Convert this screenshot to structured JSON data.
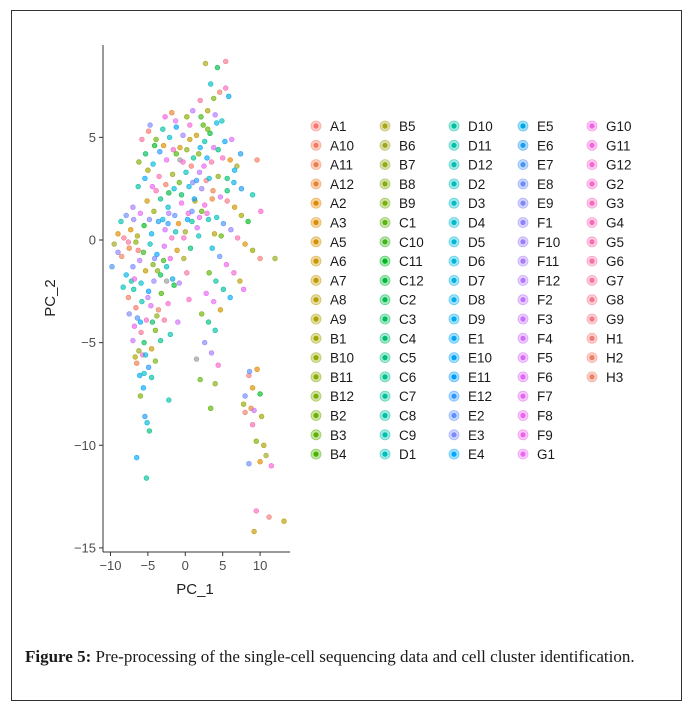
{
  "chart_data": {
    "type": "scatter",
    "title": "",
    "xlabel": "PC_1",
    "ylabel": "PC_2",
    "xlim": [
      -11,
      14
    ],
    "ylim": [
      -15.2,
      9.5
    ],
    "xticks": [
      -10,
      -5,
      0,
      5,
      10
    ],
    "yticks": [
      5,
      0,
      -5,
      -10,
      -15
    ],
    "xtick_labels": [
      "−10",
      "−5",
      "0",
      "5",
      "10"
    ],
    "ytick_labels": [
      "5",
      "0",
      "−5",
      "−10",
      "−15"
    ],
    "grid": false,
    "legend_position": "right",
    "legend_columns": [
      [
        "A1",
        "A10",
        "A11",
        "A12",
        "A2",
        "A3",
        "A5",
        "A6",
        "A7",
        "A8",
        "A9",
        "B1",
        "B10",
        "B11",
        "B12",
        "B2",
        "B3",
        "B4"
      ],
      [
        "B5",
        "B6",
        "B7",
        "B8",
        "B9",
        "C1",
        "C10",
        "C11",
        "C12",
        "C2",
        "C3",
        "C4",
        "C5",
        "C6",
        "C7",
        "C8",
        "C9",
        "D1"
      ],
      [
        "D10",
        "D11",
        "D12",
        "D2",
        "D3",
        "D4",
        "D5",
        "D6",
        "D7",
        "D8",
        "D9",
        "E1",
        "E10",
        "E11",
        "E12",
        "E2",
        "E3",
        "E4"
      ],
      [
        "E5",
        "E6",
        "E7",
        "E8",
        "E9",
        "F1",
        "F10",
        "F11",
        "F12",
        "F2",
        "F3",
        "F4",
        "F5",
        "F6",
        "F7",
        "F8",
        "F9",
        "G1"
      ],
      [
        "G10",
        "G11",
        "G12",
        "G2",
        "G3",
        "G4",
        "G5",
        "G6",
        "G7",
        "G8",
        "G9",
        "H1",
        "H2",
        "H3"
      ]
    ],
    "points_note": "",
    "points": [
      [
        -6.5,
        -10.6,
        "E4"
      ],
      [
        -5.2,
        -11.6,
        "C7"
      ],
      [
        11.2,
        -13.5,
        "H1"
      ],
      [
        13.2,
        -13.7,
        "A8"
      ],
      [
        9.2,
        -14.2,
        "A7"
      ],
      [
        9.5,
        -13.2,
        "G3"
      ],
      [
        8.5,
        -10.9,
        "E8"
      ],
      [
        9.5,
        -9.8,
        "B12"
      ],
      [
        10.5,
        -10.0,
        "A9"
      ],
      [
        10.8,
        -10.5,
        "B6"
      ],
      [
        11.5,
        -11.0,
        "G11"
      ],
      [
        10.0,
        -10.8,
        "A3"
      ],
      [
        9.0,
        -9.0,
        "G5"
      ],
      [
        8.8,
        -8.2,
        "A12"
      ],
      [
        10.2,
        -8.6,
        "B1"
      ],
      [
        8.0,
        -8.4,
        "H2"
      ],
      [
        7.8,
        -8.0,
        "B10"
      ],
      [
        9.0,
        -7.2,
        "A5"
      ],
      [
        10.0,
        -7.5,
        "C11"
      ],
      [
        8.5,
        -6.6,
        "G9"
      ],
      [
        9.6,
        -6.3,
        "A2"
      ],
      [
        8.6,
        -6.4,
        "E2"
      ],
      [
        3.4,
        -8.2,
        "B3"
      ],
      [
        2.0,
        -6.8,
        "C1"
      ],
      [
        -2.2,
        -7.8,
        "C9"
      ],
      [
        -5.1,
        -8.9,
        "D6"
      ],
      [
        -5.4,
        -8.6,
        "E6"
      ],
      [
        -4.8,
        -9.3,
        "C5"
      ],
      [
        -6.0,
        -7.6,
        "B12"
      ],
      [
        -6.1,
        -6.6,
        "E1"
      ],
      [
        -5.5,
        -6.5,
        "D2"
      ],
      [
        -4.9,
        -6.2,
        "E12"
      ],
      [
        -6.5,
        -6.0,
        "A11"
      ],
      [
        -5.7,
        -5.6,
        "G4"
      ],
      [
        -6.2,
        -5.4,
        "B7"
      ],
      [
        -7.0,
        -4.9,
        "F3"
      ],
      [
        -5.5,
        -5.0,
        "C3"
      ],
      [
        -4.5,
        -5.3,
        "A6"
      ],
      [
        -6.8,
        -4.2,
        "F8"
      ],
      [
        -6.0,
        -4.0,
        "D9"
      ],
      [
        -5.2,
        -3.9,
        "G2"
      ],
      [
        -4.0,
        -4.4,
        "B2"
      ],
      [
        -3.3,
        -4.9,
        "C6"
      ],
      [
        -7.5,
        -3.6,
        "E9"
      ],
      [
        -6.6,
        -3.3,
        "A1"
      ],
      [
        -5.8,
        -3.0,
        "D11"
      ],
      [
        -4.6,
        -3.2,
        "F6"
      ],
      [
        -3.8,
        -3.7,
        "B8"
      ],
      [
        -2.8,
        -3.9,
        "G6"
      ],
      [
        -7.6,
        -2.8,
        "A10"
      ],
      [
        -6.9,
        -2.4,
        "C8"
      ],
      [
        -5.9,
        -2.1,
        "D4"
      ],
      [
        -4.9,
        -2.5,
        "E11"
      ],
      [
        -4.2,
        -2.0,
        "F10"
      ],
      [
        -3.2,
        -2.6,
        "B4"
      ],
      [
        -2.3,
        -3.1,
        "G12"
      ],
      [
        -1.5,
        -2.2,
        "C12"
      ],
      [
        -7.9,
        -1.7,
        "D7"
      ],
      [
        -7.0,
        -1.3,
        "E3"
      ],
      [
        -6.1,
        -1.0,
        "F2"
      ],
      [
        -5.3,
        -1.5,
        "A7"
      ],
      [
        -4.3,
        -1.2,
        "B9"
      ],
      [
        -3.3,
        -1.7,
        "C2"
      ],
      [
        -2.5,
        -1.3,
        "D3"
      ],
      [
        -1.7,
        -1.9,
        "E5"
      ],
      [
        -0.8,
        -2.1,
        "F12"
      ],
      [
        0.2,
        -1.6,
        "G7"
      ],
      [
        -8.5,
        -0.8,
        "H3"
      ],
      [
        -7.5,
        -0.4,
        "A12"
      ],
      [
        -6.6,
        -0.1,
        "B11"
      ],
      [
        -5.6,
        -0.6,
        "C10"
      ],
      [
        -4.7,
        -0.2,
        "D1"
      ],
      [
        -3.8,
        -0.7,
        "E10"
      ],
      [
        -2.8,
        -0.3,
        "F5"
      ],
      [
        -2.0,
        -0.9,
        "G10"
      ],
      [
        -1.1,
        -0.5,
        "A5"
      ],
      [
        -0.2,
        -0.9,
        "B5"
      ],
      [
        0.7,
        -0.4,
        "C4"
      ],
      [
        -9.8,
        -1.3,
        "E7"
      ],
      [
        -9.0,
        -0.6,
        "F1"
      ],
      [
        -8.2,
        0.1,
        "G8"
      ],
      [
        -7.3,
        0.5,
        "A3"
      ],
      [
        -6.4,
        0.2,
        "B1"
      ],
      [
        -5.5,
        0.7,
        "C11"
      ],
      [
        -4.5,
        0.3,
        "D8"
      ],
      [
        -3.6,
        0.9,
        "E6"
      ],
      [
        -2.7,
        0.5,
        "F4"
      ],
      [
        -1.8,
        0.1,
        "G3"
      ],
      [
        -0.9,
        0.8,
        "A2"
      ],
      [
        0.0,
        0.4,
        "B6"
      ],
      [
        0.9,
        0.9,
        "C7"
      ],
      [
        1.8,
        0.2,
        "D12"
      ],
      [
        -7.9,
        1.2,
        "E8"
      ],
      [
        -7.0,
        1.6,
        "F11"
      ],
      [
        -6.0,
        1.3,
        "G1"
      ],
      [
        -5.1,
        1.9,
        "A6"
      ],
      [
        -4.2,
        1.4,
        "B10"
      ],
      [
        -3.3,
        2.0,
        "C5"
      ],
      [
        -2.3,
        1.6,
        "D5"
      ],
      [
        -1.4,
        1.2,
        "E2"
      ],
      [
        -0.5,
        1.8,
        "F9"
      ],
      [
        0.4,
        1.3,
        "G11"
      ],
      [
        1.3,
        1.9,
        "A8"
      ],
      [
        2.2,
        1.4,
        "B3"
      ],
      [
        3.1,
        1.0,
        "C9"
      ],
      [
        -6.3,
        2.6,
        "D10"
      ],
      [
        -5.4,
        3.0,
        "E4"
      ],
      [
        -4.4,
        2.6,
        "F7"
      ],
      [
        -3.5,
        3.1,
        "G5"
      ],
      [
        -2.6,
        2.7,
        "A10"
      ],
      [
        -1.7,
        3.2,
        "B7"
      ],
      [
        -0.8,
        2.8,
        "C1"
      ],
      [
        0.1,
        3.3,
        "D2"
      ],
      [
        1.0,
        2.8,
        "E9"
      ],
      [
        1.9,
        3.3,
        "F3"
      ],
      [
        2.8,
        2.9,
        "G9"
      ],
      [
        3.7,
        2.4,
        "A11"
      ],
      [
        -6.2,
        3.8,
        "B12"
      ],
      [
        -5.3,
        4.2,
        "C3"
      ],
      [
        -4.3,
        3.7,
        "D6"
      ],
      [
        -3.4,
        4.3,
        "E12"
      ],
      [
        -2.5,
        3.9,
        "F8"
      ],
      [
        -1.6,
        4.4,
        "G2"
      ],
      [
        -0.7,
        3.9,
        "A4"
      ],
      [
        0.2,
        4.4,
        "B8"
      ],
      [
        1.1,
        4.0,
        "C6"
      ],
      [
        2.0,
        4.5,
        "D9"
      ],
      [
        2.9,
        4.0,
        "E1"
      ],
      [
        3.8,
        4.5,
        "F6"
      ],
      [
        -5.8,
        4.9,
        "G6"
      ],
      [
        -4.9,
        5.3,
        "A1"
      ],
      [
        -3.9,
        4.9,
        "B2"
      ],
      [
        -3.0,
        5.4,
        "C8"
      ],
      [
        -2.1,
        5.0,
        "D4"
      ],
      [
        -1.2,
        5.5,
        "E11"
      ],
      [
        -0.3,
        5.1,
        "F10"
      ],
      [
        0.6,
        5.6,
        "G12"
      ],
      [
        1.5,
        5.1,
        "A7"
      ],
      [
        2.4,
        5.6,
        "B4"
      ],
      [
        3.3,
        5.2,
        "C12"
      ],
      [
        4.2,
        5.7,
        "D7"
      ],
      [
        -4.7,
        5.6,
        "E3"
      ],
      [
        1.0,
        6.3,
        "F2"
      ],
      [
        2.0,
        6.8,
        "G7"
      ],
      [
        3.0,
        6.3,
        "A9"
      ],
      [
        3.8,
        6.9,
        "B9"
      ],
      [
        4.6,
        7.2,
        "H2"
      ],
      [
        5.4,
        7.4,
        "G4"
      ],
      [
        2.7,
        8.6,
        "B5"
      ],
      [
        4.3,
        8.4,
        "C2"
      ],
      [
        5.4,
        8.7,
        "G8"
      ],
      [
        3.4,
        7.6,
        "D3"
      ],
      [
        5.8,
        7.0,
        "E5"
      ],
      [
        4.0,
        6.1,
        "F12"
      ],
      [
        -2.7,
        6.0,
        "G10"
      ],
      [
        -1.8,
        6.2,
        "A12"
      ],
      [
        0.2,
        6.0,
        "B11"
      ],
      [
        2.1,
        6.0,
        "C10"
      ],
      [
        4.9,
        5.8,
        "D1"
      ],
      [
        5.3,
        4.8,
        "E10"
      ],
      [
        6.2,
        4.9,
        "F5"
      ],
      [
        5.0,
        4.0,
        "G3"
      ],
      [
        6.0,
        3.9,
        "A2"
      ],
      [
        6.9,
        3.6,
        "B6"
      ],
      [
        5.6,
        3.0,
        "C4"
      ],
      [
        6.5,
        2.8,
        "D8"
      ],
      [
        7.5,
        2.5,
        "E6"
      ],
      [
        4.7,
        2.1,
        "F4"
      ],
      [
        5.6,
        1.9,
        "G9"
      ],
      [
        6.6,
        1.6,
        "A5"
      ],
      [
        7.5,
        1.2,
        "B1"
      ],
      [
        8.4,
        0.9,
        "C11"
      ],
      [
        4.2,
        1.1,
        "D12"
      ],
      [
        5.1,
        0.8,
        "E7"
      ],
      [
        6.1,
        0.5,
        "F1"
      ],
      [
        7.0,
        0.1,
        "G5"
      ],
      [
        8.0,
        -0.2,
        "A3"
      ],
      [
        9.0,
        -0.5,
        "B10"
      ],
      [
        10.0,
        -0.9,
        "H1"
      ],
      [
        12.0,
        -0.9,
        "B7"
      ],
      [
        9.6,
        3.9,
        "A10"
      ],
      [
        9.0,
        2.2,
        "C9"
      ],
      [
        10.1,
        1.4,
        "G12"
      ],
      [
        3.6,
        -0.4,
        "D5"
      ],
      [
        4.6,
        -0.8,
        "E2"
      ],
      [
        5.5,
        -1.2,
        "F9"
      ],
      [
        6.5,
        -1.6,
        "G11"
      ],
      [
        7.3,
        -2.0,
        "A8"
      ],
      [
        3.2,
        -1.6,
        "B3"
      ],
      [
        4.1,
        -2.0,
        "C7"
      ],
      [
        5.1,
        -2.4,
        "D10"
      ],
      [
        6.0,
        -2.8,
        "E4"
      ],
      [
        2.8,
        -2.6,
        "F7"
      ],
      [
        3.8,
        -3.0,
        "G1"
      ],
      [
        4.7,
        -3.4,
        "A6"
      ],
      [
        2.2,
        -3.6,
        "B2"
      ],
      [
        3.1,
        -4.0,
        "C5"
      ],
      [
        4.0,
        -4.4,
        "D11"
      ],
      [
        2.6,
        -5.0,
        "E9"
      ],
      [
        3.5,
        -5.5,
        "F11"
      ],
      [
        4.4,
        -6.1,
        "G2"
      ],
      [
        1.5,
        -5.8,
        "A4"
      ],
      [
        4.0,
        -7.0,
        "B8"
      ],
      [
        8.0,
        -7.6,
        "E8"
      ],
      [
        9.2,
        -8.3,
        "F3"
      ],
      [
        -0.5,
        2.2,
        "C3"
      ],
      [
        0.5,
        2.6,
        "D6"
      ],
      [
        1.5,
        2.9,
        "E12"
      ],
      [
        2.5,
        3.6,
        "F8"
      ],
      [
        3.5,
        3.8,
        "G6"
      ],
      [
        0.8,
        3.6,
        "A1"
      ],
      [
        1.8,
        4.2,
        "B12"
      ],
      [
        2.6,
        4.8,
        "C8"
      ],
      [
        3.2,
        3.0,
        "D4"
      ],
      [
        1.2,
        2.0,
        "E11"
      ],
      [
        2.2,
        2.5,
        "F10"
      ],
      [
        -0.3,
        3.8,
        "G12"
      ],
      [
        0.6,
        4.9,
        "A7"
      ],
      [
        -1.2,
        4.2,
        "B4"
      ],
      [
        -2.2,
        2.3,
        "C12"
      ],
      [
        -3.0,
        1.0,
        "D7"
      ],
      [
        -4.1,
        -0.9,
        "E3"
      ],
      [
        -5.0,
        -2.8,
        "F2"
      ],
      [
        -5.9,
        -4.5,
        "G7"
      ],
      [
        -6.7,
        -5.7,
        "A9"
      ],
      [
        -4.0,
        -5.9,
        "B9"
      ],
      [
        -3.6,
        -3.4,
        "H3"
      ],
      [
        -2.9,
        -1.0,
        "C10"
      ],
      [
        -1.3,
        0.4,
        "D1"
      ],
      [
        0.3,
        1.0,
        "E10"
      ],
      [
        1.6,
        0.6,
        "F5"
      ],
      [
        2.6,
        1.7,
        "G10"
      ],
      [
        3.6,
        2.0,
        "A12"
      ],
      [
        4.4,
        3.1,
        "B11"
      ],
      [
        5.6,
        2.4,
        "C4"
      ],
      [
        6.6,
        3.4,
        "D8"
      ],
      [
        7.4,
        4.2,
        "E6"
      ],
      [
        -1.0,
        -4.0,
        "F4"
      ],
      [
        0.5,
        -2.9,
        "G3"
      ],
      [
        -9.0,
        0.3,
        "A2"
      ],
      [
        -9.5,
        -0.2,
        "B6"
      ],
      [
        -7.2,
        -2.0,
        "C7"
      ],
      [
        -8.3,
        -2.3,
        "D12"
      ],
      [
        -6.4,
        -3.8,
        "E7"
      ],
      [
        -6.9,
        1.0,
        "F1"
      ],
      [
        -3.9,
        2.4,
        "G5"
      ],
      [
        -2.9,
        4.6,
        "A3"
      ],
      [
        -5.0,
        3.4,
        "B1"
      ],
      [
        -4.1,
        4.6,
        "C11"
      ],
      [
        -1.5,
        2.5,
        "D5"
      ],
      [
        0.9,
        1.4,
        "E2"
      ],
      [
        1.9,
        1.1,
        "F9"
      ],
      [
        2.9,
        1.3,
        "G11"
      ],
      [
        3.9,
        0.3,
        "A8"
      ],
      [
        4.8,
        0.2,
        "B3"
      ],
      [
        -2.0,
        -4.6,
        "C9"
      ],
      [
        -4.5,
        -6.7,
        "D10"
      ],
      [
        -5.6,
        -7.2,
        "E4"
      ],
      [
        7.8,
        -2.4,
        "F7"
      ],
      [
        -1.3,
        5.8,
        "G1"
      ],
      [
        -0.7,
        4.5,
        "A6"
      ],
      [
        3.0,
        5.4,
        "B2"
      ],
      [
        4.4,
        4.4,
        "C5"
      ],
      [
        -8.6,
        0.9,
        "D11"
      ],
      [
        -4.8,
        1.0,
        "E9"
      ],
      [
        -2.2,
        1.3,
        "F11"
      ],
      [
        -0.2,
        0.1,
        "G2"
      ],
      [
        -2.5,
        -2.0,
        "A4"
      ],
      [
        -3.7,
        -1.5,
        "B8"
      ],
      [
        -4.4,
        -4.0,
        "C3"
      ],
      [
        -5.3,
        -5.6,
        "D6"
      ],
      [
        -2.3,
        0.8,
        "E12"
      ],
      [
        -6.8,
        -1.9,
        "F8"
      ],
      [
        -7.6,
        -0.1,
        "G6"
      ],
      [
        -6.3,
        -0.5,
        "A1"
      ]
    ],
    "cluster_colors": {
      "A1": "#F8766D",
      "A10": "#F47A5C",
      "A11": "#EF7E4B",
      "A12": "#EA8331",
      "A2": "#E38900",
      "A3": "#DC8D00",
      "A5": "#D49200",
      "A6": "#CB9600",
      "A7": "#C29A00",
      "A8": "#B89E00",
      "A9": "#ADA200",
      "B1": "#A2A500",
      "B10": "#96A900",
      "B11": "#89AC00",
      "B12": "#7CAE00",
      "B2": "#6DB100",
      "B3": "#5CB300",
      "B4": "#47B500",
      "B5": "#A9A418",
      "B6": "#9FA71E",
      "B7": "#93AA1A",
      "B8": "#86AD12",
      "B9": "#78AF0C",
      "C1": "#5DB30E",
      "C10": "#3EB51E",
      "C11": "#00B81F",
      "C12": "#00BA38",
      "C2": "#00BB4E",
      "C3": "#00BD5F",
      "C4": "#00BE6F",
      "C5": "#00BF7D",
      "C6": "#00C08B",
      "C7": "#00C098",
      "C8": "#00C1A3",
      "C9": "#00C1AE",
      "D1": "#00BFB8",
      "D10": "#00BFA0",
      "D11": "#00C0AA",
      "D12": "#00C0B4",
      "D2": "#00BFBE",
      "D3": "#00BDC6",
      "D4": "#00BBCE",
      "D5": "#00B9D6",
      "D6": "#00B6DD",
      "D7": "#00B3E4",
      "D8": "#00AFEA",
      "D9": "#00ABF0",
      "E1": "#00A6F5",
      "E10": "#00A2F9",
      "E11": "#009DFC",
      "E12": "#2B97FF",
      "E2": "#5D90FF",
      "E3": "#7B89FF",
      "E4": "#00A9FF",
      "E5": "#00A5E8",
      "E6": "#1E9BEF",
      "E7": "#4A94F3",
      "E8": "#6C8DF6",
      "E9": "#8087F7",
      "F1": "#8F83F9",
      "F10": "#9D7FFA",
      "F11": "#A97BFB",
      "F12": "#B478FC",
      "F2": "#BE74FC",
      "F3": "#C771FC",
      "F4": "#D06DFB",
      "F5": "#D86AF9",
      "F6": "#DF67F6",
      "F7": "#E565F2",
      "F8": "#EA64ED",
      "F9": "#EE63E7",
      "G1": "#E76BF3",
      "G10": "#F163E0",
      "G11": "#F464D9",
      "G12": "#F665D1",
      "G2": "#F767C9",
      "G3": "#F869C0",
      "G4": "#F86BB7",
      "G5": "#F86DAD",
      "G6": "#F770A3",
      "G7": "#F67399",
      "G8": "#F4768E",
      "G9": "#F27983",
      "H1": "#F07C78",
      "H2": "#EE7F6E",
      "H3": "#EC8264"
    }
  },
  "caption": {
    "label": "Figure 5:",
    "text": " Pre-processing of the single-cell sequencing data and cell cluster identification."
  }
}
